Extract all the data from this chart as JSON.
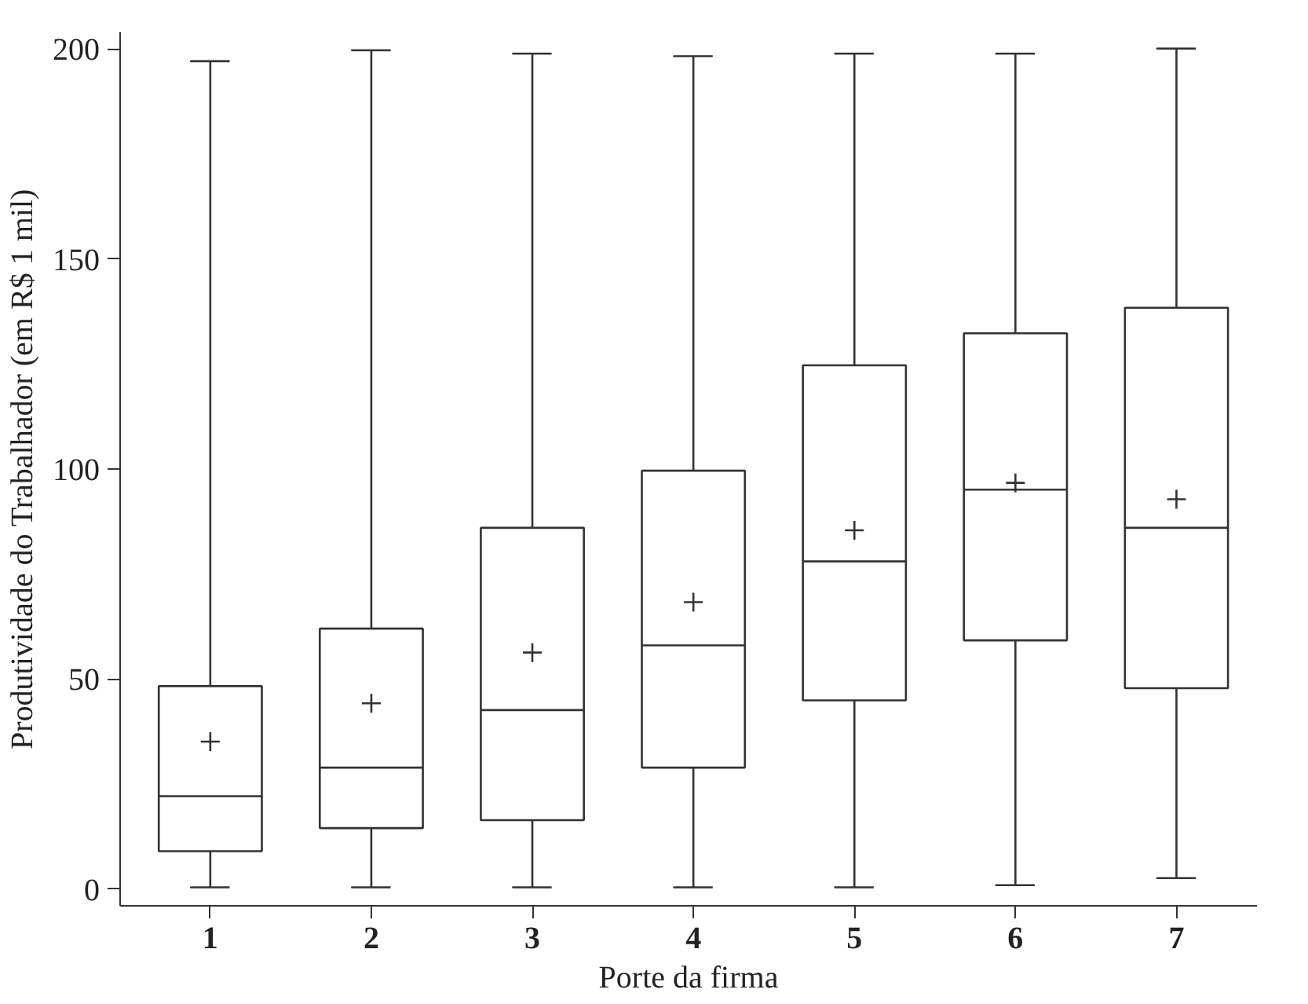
{
  "chart_data": {
    "type": "box",
    "xlabel": "Porte da firma",
    "ylabel": "Produtividade do Trabalhador (em R$ 1 mil)",
    "categories": [
      "1",
      "2",
      "3",
      "4",
      "5",
      "6",
      "7"
    ],
    "boxes": [
      {
        "low": 0.4,
        "q1": 9.0,
        "median": 22.1,
        "q3": 48.3,
        "high": 197.1,
        "mean": 35.1
      },
      {
        "low": 0.4,
        "q1": 14.5,
        "median": 28.9,
        "q3": 62.0,
        "high": 199.7,
        "mean": 44.2
      },
      {
        "low": 0.4,
        "q1": 16.4,
        "median": 42.6,
        "q3": 86.0,
        "high": 198.9,
        "mean": 56.3
      },
      {
        "low": 0.4,
        "q1": 28.9,
        "median": 58.0,
        "q3": 99.6,
        "high": 198.3,
        "mean": 68.3
      },
      {
        "low": 0.4,
        "q1": 44.9,
        "median": 78.0,
        "q3": 124.7,
        "high": 198.9,
        "mean": 85.4
      },
      {
        "low": 0.9,
        "q1": 59.2,
        "median": 95.1,
        "q3": 132.3,
        "high": 198.9,
        "mean": 96.7
      },
      {
        "low": 2.6,
        "q1": 47.8,
        "median": 86.0,
        "q3": 138.4,
        "high": 200.1,
        "mean": 92.8
      }
    ],
    "ylim": [
      -4,
      204
    ],
    "yticks": [
      0,
      50,
      100,
      150,
      200
    ],
    "grid": false
  }
}
